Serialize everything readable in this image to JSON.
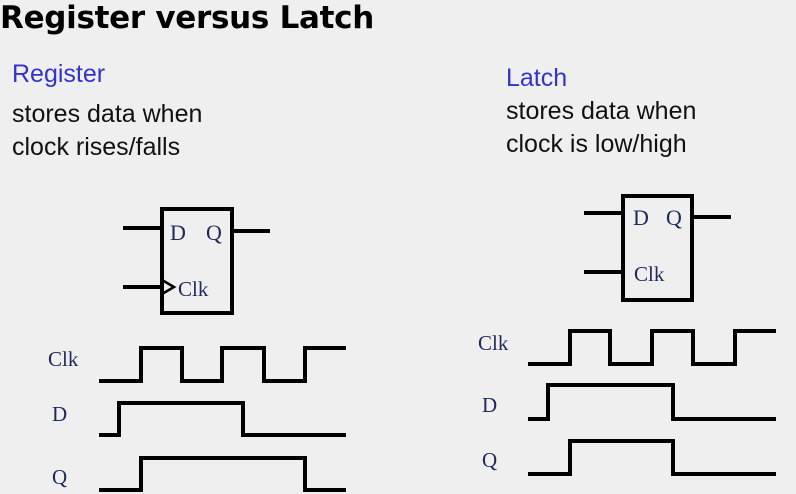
{
  "title": "Register versus Latch",
  "register": {
    "heading": "Register",
    "desc_line1": "stores data when",
    "desc_line2": "clock rises/falls",
    "box": {
      "d_label": "D",
      "q_label": "Q",
      "clk_label": "Clk"
    },
    "timing": {
      "clk_label": "Clk",
      "d_label": "D",
      "q_label": "Q"
    }
  },
  "latch": {
    "heading": "Latch",
    "desc_line1": "stores data when",
    "desc_line2": "clock is low/high",
    "box": {
      "d_label": "D",
      "q_label": "Q",
      "clk_label": "Clk"
    },
    "timing": {
      "clk_label": "Clk",
      "d_label": "D",
      "q_label": "Q"
    }
  }
}
